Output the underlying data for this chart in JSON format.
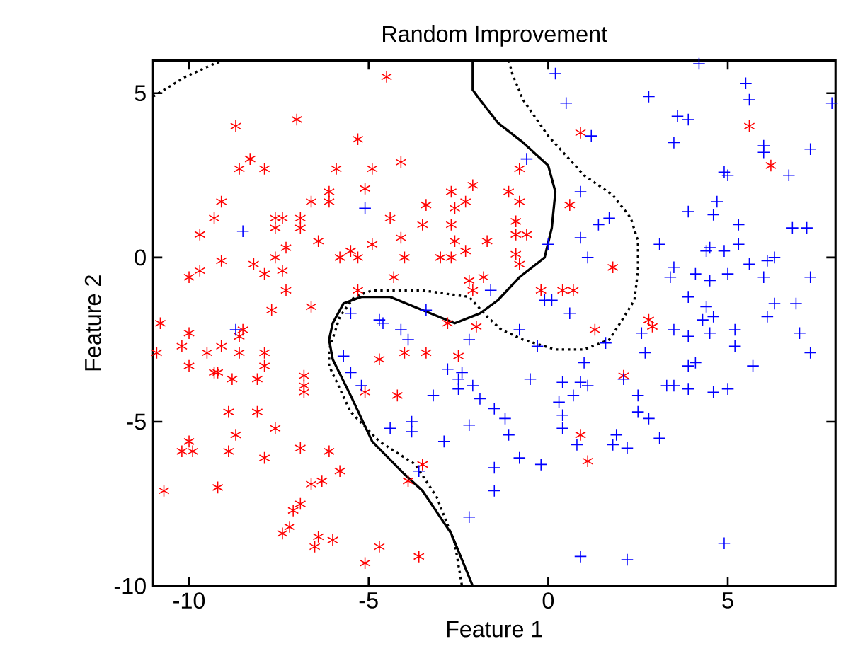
{
  "chart_data": {
    "type": "scatter",
    "title": "Random Improvement",
    "xlabel": "Feature 1",
    "ylabel": "Feature 2",
    "xlim": [
      -11,
      8
    ],
    "ylim": [
      -10,
      6
    ],
    "xticks": [
      -10,
      -5,
      0,
      5
    ],
    "yticks": [
      -10,
      -5,
      0,
      5
    ],
    "series": [
      {
        "color": "#ff0000",
        "x": [
          -4.5,
          -8.7,
          -7.0,
          -5.3,
          -8.3,
          -8.6,
          -7.9,
          -5.9,
          -4.9,
          -4.1,
          -5.1,
          -2.1,
          -2.7,
          -2.3,
          -3.4,
          -2.6,
          -9.1,
          -9.3,
          -9.7,
          -6.6,
          -6.1,
          -6.1,
          -7.6,
          -7.4,
          -7.6,
          -6.9,
          -6.9,
          -4.4,
          -3.5,
          -2.7,
          -4.1,
          -6.4,
          -4.9,
          -2.6,
          -1.7,
          -7.6,
          -7.3,
          -5.8,
          -5.5,
          -5.3,
          -4.0,
          -3.0,
          -2.7,
          -2.3,
          -9.1,
          -10.0,
          -9.7,
          -8.2,
          -7.9,
          -7.4,
          -7.3,
          -4.3,
          -5.3,
          -2.2,
          -2.1,
          -1.8,
          -6.6,
          -7.7,
          -10.8,
          -2.8,
          -2.0,
          0.9,
          5.6,
          6.2,
          -0.8,
          -1.1,
          -0.8,
          0.6,
          -0.9,
          -0.9,
          -0.6,
          -0.9,
          -0.8,
          1.8,
          -0.2,
          0.4,
          0.7,
          2.8,
          2.9,
          -10.0,
          -10.2,
          -10.9,
          -9.5,
          -9.1,
          -8.6,
          -8.5,
          -8.6,
          -7.9,
          -7.9,
          -8.1,
          -10.0,
          -9.3,
          -9.2,
          -8.8,
          -6.8,
          -6.8,
          -6.8,
          -8.9,
          -8.1,
          -7.6,
          -8.7,
          -10.0,
          -10.2,
          -9.9,
          -8.9,
          -7.9,
          -6.9,
          -6.1,
          -5.8,
          -6.6,
          -6.3,
          -10.7,
          -9.2,
          -6.9,
          -7.1,
          -7.2,
          -7.4,
          -6.4,
          -6.0,
          -6.5,
          -5.1,
          -4.7,
          -3.6,
          -4.7,
          -4.0,
          -3.4,
          -2.5,
          -5.1,
          -4.2,
          -3.5,
          -3.9,
          1.3,
          2.1,
          0.9,
          1.1
        ],
        "values": [
          5.5,
          4.0,
          4.2,
          3.6,
          3.0,
          2.7,
          2.7,
          2.7,
          2.7,
          2.9,
          2.1,
          2.2,
          2.0,
          1.7,
          1.6,
          1.5,
          1.7,
          1.2,
          0.7,
          1.7,
          2.0,
          1.7,
          1.2,
          1.2,
          0.9,
          1.2,
          0.9,
          1.2,
          1.0,
          1.0,
          0.6,
          0.5,
          0.4,
          0.5,
          0.5,
          0.0,
          0.3,
          0.0,
          0.2,
          0.0,
          0.0,
          0.0,
          0.0,
          0.2,
          -0.1,
          -0.6,
          -0.4,
          -0.2,
          -0.5,
          -0.4,
          -1.0,
          -0.6,
          -1.0,
          -0.7,
          -1.0,
          -0.6,
          -1.5,
          -1.6,
          -2.0,
          -2.0,
          -2.1,
          3.8,
          4.0,
          2.8,
          2.7,
          2.0,
          1.7,
          1.6,
          1.1,
          0.7,
          0.7,
          0.1,
          -0.2,
          -0.3,
          -1.0,
          -1.0,
          -1.0,
          -1.9,
          -2.1,
          -2.3,
          -2.7,
          -2.9,
          -2.9,
          -2.7,
          -2.4,
          -2.2,
          -2.9,
          -2.9,
          -3.3,
          -3.7,
          -3.3,
          -3.5,
          -3.5,
          -3.7,
          -3.6,
          -3.9,
          -4.1,
          -4.7,
          -4.7,
          -5.2,
          -5.4,
          -5.6,
          -5.9,
          -5.9,
          -5.9,
          -6.1,
          -5.8,
          -5.9,
          -6.5,
          -6.9,
          -6.8,
          -7.1,
          -7.0,
          -7.5,
          -7.7,
          -8.2,
          -8.4,
          -8.5,
          -8.6,
          -8.8,
          -9.3,
          -8.8,
          -9.1,
          -3.1,
          -2.9,
          -2.9,
          -3.0,
          -4.1,
          -4.2,
          -6.3,
          -6.8,
          -2.2,
          -3.6,
          -5.4,
          -6.2
        ]
      },
      {
        "color": "#0000ff",
        "marker": "cross",
        "x": [
          -5.1,
          -8.5,
          -5.5,
          -4.7,
          -3.4,
          -1.6,
          0.2,
          0.5,
          2.8,
          4.2,
          5.5,
          5.6,
          7.9,
          3.6,
          3.9,
          1.2,
          3.5,
          6.0,
          6.0,
          7.3,
          -0.6,
          4.9,
          5.0,
          6.7,
          0.9,
          4.7,
          3.9,
          4.6,
          1.7,
          1.4,
          5.3,
          6.8,
          7.2,
          0.9,
          3.1,
          0.0,
          4.5,
          4.4,
          4.9,
          5.3,
          1.1,
          6.3,
          6.1,
          5.6,
          3.5,
          3.4,
          4.1,
          5.0,
          4.5,
          6.0,
          7.3,
          3.9,
          0.1,
          -0.1,
          0.6,
          4.4,
          6.3,
          6.9,
          4.3,
          4.6,
          6.1,
          -8.7,
          -5.7,
          -5.5,
          -5.2,
          -4.6,
          -4.1,
          -3.9,
          -2.8,
          -2.4,
          -2.5,
          -2.1,
          -2.5,
          -1.9,
          -3.2,
          -4.4,
          -3.8,
          -3.8,
          -2.2,
          -2.9,
          -3.6,
          -2.2,
          -2.2,
          -0.8,
          -0.3,
          1.0,
          -0.5,
          0.4,
          0.9,
          1.1,
          0.7,
          0.3,
          0.4,
          0.4,
          0.8,
          1.9,
          1.8,
          2.2,
          -1.5,
          -1.2,
          -1.1,
          -0.8,
          -1.5,
          -1.5,
          -0.2,
          1.6,
          2.6,
          2.7,
          3.5,
          3.9,
          4.5,
          5.2,
          5.2,
          7.0,
          7.3,
          5.7,
          3.9,
          4.1,
          3.3,
          3.5,
          3.9,
          4.6,
          5.0,
          2.5,
          2.5,
          2.8,
          3.1,
          0.9,
          2.2,
          4.9,
          2.1
        ],
        "values": [
          1.5,
          0.8,
          -1.7,
          -1.9,
          -1.6,
          -1.0,
          5.6,
          4.7,
          4.9,
          5.9,
          5.3,
          4.8,
          4.7,
          4.3,
          4.2,
          3.7,
          3.5,
          3.4,
          3.2,
          3.3,
          3.0,
          2.6,
          2.5,
          2.5,
          2.0,
          1.7,
          1.4,
          1.3,
          1.2,
          1.0,
          1.0,
          0.9,
          0.9,
          0.6,
          0.4,
          0.4,
          0.3,
          0.2,
          0.2,
          0.4,
          0.0,
          0.0,
          -0.1,
          -0.2,
          -0.3,
          -0.6,
          -0.5,
          -0.5,
          -0.7,
          -0.6,
          -0.6,
          -1.2,
          -1.3,
          -1.3,
          -1.7,
          -1.5,
          -1.4,
          -1.4,
          -1.9,
          -1.8,
          -1.8,
          -2.2,
          -3.0,
          -3.5,
          -3.9,
          -2.0,
          -2.2,
          -2.5,
          -3.4,
          -3.5,
          -3.7,
          -3.9,
          -4.0,
          -4.3,
          -4.2,
          -5.2,
          -5.0,
          -5.3,
          -5.1,
          -5.6,
          -6.5,
          -7.9,
          -2.5,
          -2.2,
          -2.7,
          -3.2,
          -3.7,
          -3.8,
          -3.8,
          -3.9,
          -4.2,
          -4.4,
          -4.8,
          -5.2,
          -5.7,
          -5.4,
          -5.7,
          -5.8,
          -4.6,
          -4.9,
          -5.4,
          -6.1,
          -6.4,
          -7.1,
          -6.3,
          -2.6,
          -2.3,
          -2.9,
          -2.2,
          -2.4,
          -2.3,
          -2.2,
          -2.7,
          -2.3,
          -2.9,
          -3.3,
          -3.3,
          -3.2,
          -3.9,
          -3.9,
          -4.0,
          -4.1,
          -4.0,
          -4.2,
          -4.7,
          -4.9,
          -5.5,
          -9.1,
          -9.2,
          -8.7,
          -3.7
        ]
      },
      {
        "type": "line",
        "color": "#000000",
        "line_style": "solid",
        "x": [
          -2.1,
          -2.1,
          -1.9,
          -1.4,
          -0.7,
          0.0,
          0.2,
          0.1,
          -0.1,
          -0.8,
          -1.4,
          -1.9,
          -2.6,
          -3.5,
          -4.4,
          -5.2,
          -5.7,
          -6.0,
          -6.1,
          -6.0,
          -5.5,
          -4.9,
          -4.0,
          -3.5,
          -2.7,
          -2.1
        ],
        "values": [
          6.0,
          5.1,
          4.8,
          4.1,
          3.5,
          2.8,
          2.0,
          0.9,
          0.0,
          -0.6,
          -1.3,
          -1.7,
          -2.0,
          -1.6,
          -1.2,
          -1.2,
          -1.4,
          -2.0,
          -2.5,
          -3.1,
          -4.2,
          -5.6,
          -6.6,
          -7.1,
          -8.4,
          -10.0
        ]
      },
      {
        "type": "line",
        "color": "#000000",
        "line_style": "dotted",
        "x": [
          -1.1,
          -1.0,
          -0.7,
          0.0,
          1.0,
          1.8,
          2.3,
          2.5,
          2.5,
          2.4,
          2.0,
          1.7,
          1.0,
          0.2,
          -0.7,
          -1.3,
          -1.7,
          -2.2,
          -3.5,
          -4.9,
          -5.4,
          -5.8,
          -6.1,
          -6.1,
          -5.5,
          -4.7,
          -3.7,
          -3.1,
          -2.6,
          -2.4
        ],
        "values": [
          6.0,
          5.6,
          4.8,
          3.7,
          2.5,
          1.9,
          1.2,
          0.5,
          -0.4,
          -1.3,
          -2.0,
          -2.5,
          -2.8,
          -2.8,
          -2.5,
          -2.2,
          -1.8,
          -1.2,
          -1.0,
          -1.0,
          -1.2,
          -1.8,
          -2.8,
          -3.3,
          -4.7,
          -5.6,
          -6.3,
          -7.3,
          -8.7,
          -10.0
        ]
      },
      {
        "type": "line",
        "color": "#000000",
        "line_style": "dotted",
        "x": [
          -11.0,
          -10.1,
          -9.3,
          -9.0
        ],
        "values": [
          4.9,
          5.5,
          5.9,
          6.0
        ]
      }
    ]
  }
}
